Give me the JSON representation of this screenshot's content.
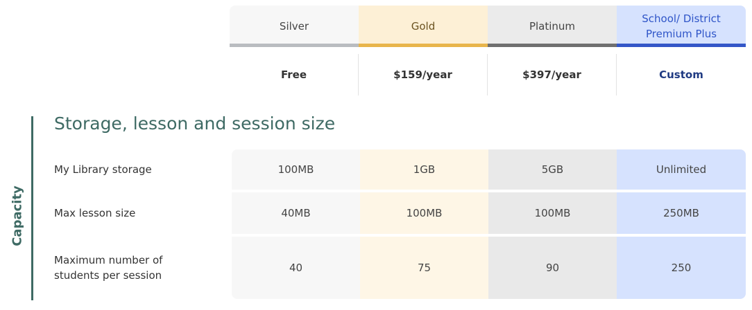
{
  "plans": [
    {
      "name": "Silver",
      "price": "Free"
    },
    {
      "name": "Gold",
      "price": "$159/year"
    },
    {
      "name": "Platinum",
      "price": "$397/year"
    },
    {
      "name": "School/ District Premium Plus",
      "price": "Custom"
    }
  ],
  "colors": {
    "silver_accent": "#b9bcc0",
    "gold_accent": "#e8b54c",
    "platinum_accent": "#6f6f6f",
    "premium_accent": "#3457c8",
    "section_accent": "#3e6a64"
  },
  "category_label": "Capacity",
  "section_title": "Storage, lesson and session size",
  "rows": [
    {
      "label": "My Library storage",
      "values": [
        "100MB",
        "1GB",
        "5GB",
        "Unlimited"
      ]
    },
    {
      "label": "Max lesson size",
      "values": [
        "40MB",
        "100MB",
        "100MB",
        "250MB"
      ]
    },
    {
      "label": "Maximum number of students per session",
      "values": [
        "40",
        "75",
        "90",
        "250"
      ]
    }
  ]
}
